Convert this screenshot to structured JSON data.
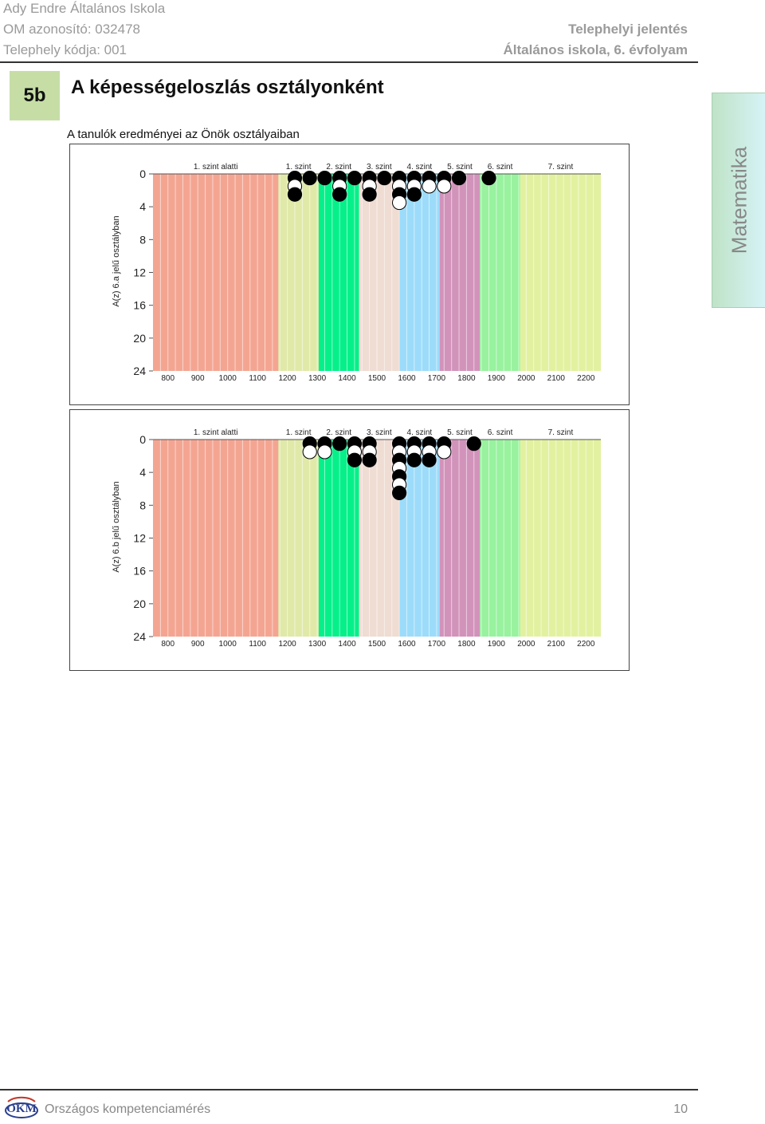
{
  "header": {
    "school_name": "Ady Endre Általános Iskola",
    "om_id": "OM azonosító: 032478",
    "site_code": "Telephely kódja: 001",
    "report_type": "Telephelyi jelentés",
    "school_type": "Általános iskola, 6. évfolyam"
  },
  "section": {
    "badge": "5b",
    "title": "A képességeloszlás osztályonként",
    "subtitle": "A tanulók eredményei az Önök osztályaiban"
  },
  "side_tab": {
    "label": "Matematika"
  },
  "colors": {
    "level_below_1": "#f4a592",
    "level_1": "#e0e9a8",
    "level_2": "#06f08a",
    "level_3": "#efdcd3",
    "level_4": "#9cdcfa",
    "level_5": "#d293bb",
    "level_6": "#98f29e",
    "level_7": "#e2f1a0"
  },
  "chart_data": [
    {
      "type": "scatter",
      "ylabel": "A(z) 6.a jelű osztályban",
      "x_ticks": [
        "800",
        "900",
        "1000",
        "1100",
        "1200",
        "1300",
        "1400",
        "1500",
        "1600",
        "1700",
        "1800",
        "1900",
        "2000",
        "2100",
        "2200"
      ],
      "y_ticks": [
        "0",
        "4",
        "8",
        "12",
        "16",
        "20",
        "24"
      ],
      "xlim": [
        750,
        2250
      ],
      "ylim": [
        0,
        24
      ],
      "levels": [
        {
          "label": "1. szint alatti",
          "from": 750,
          "to": 1170
        },
        {
          "label": "1. szint",
          "from": 1170,
          "to": 1305
        },
        {
          "label": "2. szint",
          "from": 1305,
          "to": 1440
        },
        {
          "label": "3. szint",
          "from": 1440,
          "to": 1575
        },
        {
          "label": "4. szint",
          "from": 1575,
          "to": 1710
        },
        {
          "label": "5. szint",
          "from": 1710,
          "to": 1845
        },
        {
          "label": "6. szint",
          "from": 1845,
          "to": 1980
        },
        {
          "label": "7. szint",
          "from": 1980,
          "to": 2250
        }
      ],
      "points": [
        {
          "x": 1225,
          "stack": [
            "filled",
            "empty",
            "filled"
          ]
        },
        {
          "x": 1275,
          "stack": [
            "filled"
          ]
        },
        {
          "x": 1325,
          "stack": [
            "filled"
          ]
        },
        {
          "x": 1375,
          "stack": [
            "filled",
            "empty",
            "filled"
          ]
        },
        {
          "x": 1425,
          "stack": [
            "filled"
          ]
        },
        {
          "x": 1475,
          "stack": [
            "filled",
            "empty",
            "filled"
          ]
        },
        {
          "x": 1525,
          "stack": [
            "filled"
          ]
        },
        {
          "x": 1575,
          "stack": [
            "filled",
            "empty",
            "filled",
            "empty"
          ]
        },
        {
          "x": 1625,
          "stack": [
            "filled",
            "empty",
            "filled"
          ]
        },
        {
          "x": 1675,
          "stack": [
            "filled",
            "empty"
          ]
        },
        {
          "x": 1725,
          "stack": [
            "filled",
            "empty"
          ]
        },
        {
          "x": 1775,
          "stack": [
            "filled"
          ]
        },
        {
          "x": 1875,
          "stack": [
            "filled"
          ]
        }
      ]
    },
    {
      "type": "scatter",
      "ylabel": "A(z) 6.b jelű osztályban",
      "x_ticks": [
        "800",
        "900",
        "1000",
        "1100",
        "1200",
        "1300",
        "1400",
        "1500",
        "1600",
        "1700",
        "1800",
        "1900",
        "2000",
        "2100",
        "2200"
      ],
      "y_ticks": [
        "0",
        "4",
        "8",
        "12",
        "16",
        "20",
        "24"
      ],
      "xlim": [
        750,
        2250
      ],
      "ylim": [
        0,
        24
      ],
      "levels": [
        {
          "label": "1. szint alatti",
          "from": 750,
          "to": 1170
        },
        {
          "label": "1. szint",
          "from": 1170,
          "to": 1305
        },
        {
          "label": "2. szint",
          "from": 1305,
          "to": 1440
        },
        {
          "label": "3. szint",
          "from": 1440,
          "to": 1575
        },
        {
          "label": "4. szint",
          "from": 1575,
          "to": 1710
        },
        {
          "label": "5. szint",
          "from": 1710,
          "to": 1845
        },
        {
          "label": "6. szint",
          "from": 1845,
          "to": 1980
        },
        {
          "label": "7. szint",
          "from": 1980,
          "to": 2250
        }
      ],
      "points": [
        {
          "x": 1275,
          "stack": [
            "filled",
            "empty"
          ]
        },
        {
          "x": 1325,
          "stack": [
            "filled",
            "empty"
          ]
        },
        {
          "x": 1375,
          "stack": [
            "filled"
          ]
        },
        {
          "x": 1425,
          "stack": [
            "filled",
            "empty",
            "filled"
          ]
        },
        {
          "x": 1475,
          "stack": [
            "filled",
            "empty",
            "filled"
          ]
        },
        {
          "x": 1575,
          "stack": [
            "filled",
            "empty",
            "filled",
            "empty",
            "filled",
            "empty",
            "filled"
          ]
        },
        {
          "x": 1625,
          "stack": [
            "filled",
            "empty",
            "filled"
          ]
        },
        {
          "x": 1675,
          "stack": [
            "filled",
            "empty",
            "filled"
          ]
        },
        {
          "x": 1725,
          "stack": [
            "filled",
            "empty"
          ]
        },
        {
          "x": 1825,
          "stack": [
            "filled"
          ]
        }
      ]
    }
  ],
  "footer": {
    "logo_text": "OKM",
    "program_name": "Országos kompetenciamérés",
    "page_number": "10"
  }
}
